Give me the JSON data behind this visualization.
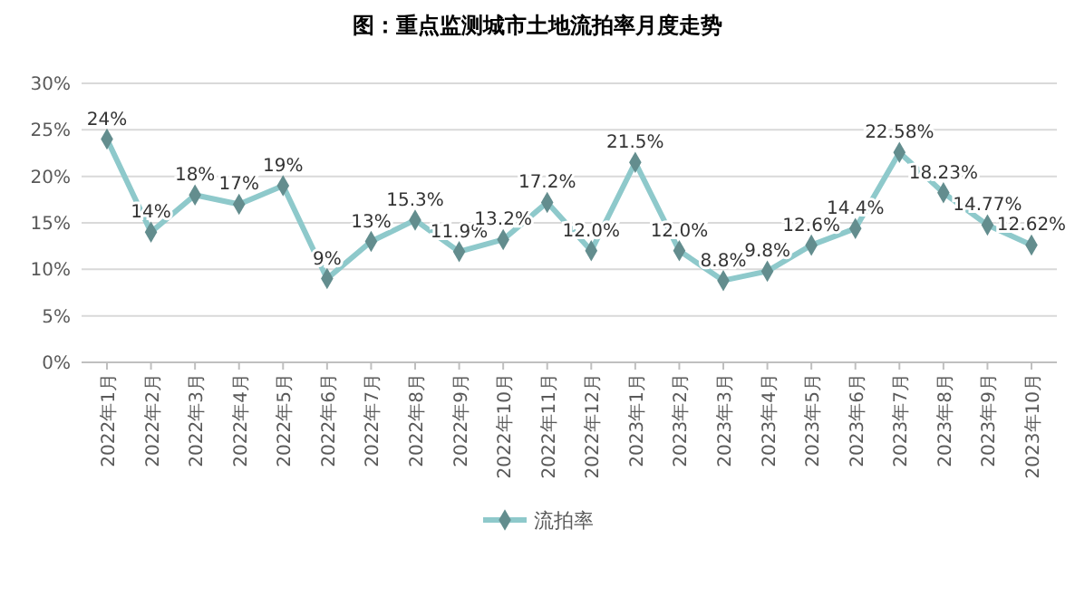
{
  "chart_data": {
    "type": "line",
    "title": "图：重点监测城市土地流拍率月度走势",
    "categories": [
      "2022年1月",
      "2022年2月",
      "2022年3月",
      "2022年4月",
      "2022年5月",
      "2022年6月",
      "2022年7月",
      "2022年8月",
      "2022年9月",
      "2022年10月",
      "2022年11月",
      "2022年12月",
      "2023年1月",
      "2023年2月",
      "2023年3月",
      "2023年4月",
      "2023年5月",
      "2023年6月",
      "2023年7月",
      "2023年8月",
      "2023年9月",
      "2023年10月"
    ],
    "series": [
      {
        "name": "流拍率",
        "color": "#8ec9cb",
        "values": [
          24,
          14,
          18,
          17,
          19,
          9,
          13,
          15.3,
          11.9,
          13.2,
          17.2,
          12.0,
          21.5,
          12.0,
          8.8,
          9.8,
          12.6,
          14.4,
          22.58,
          18.23,
          14.77,
          12.62
        ],
        "value_labels": [
          "24%",
          "14%",
          "18%",
          "17%",
          "19%",
          "9%",
          "13%",
          "15.3%",
          "11.9%",
          "13.2%",
          "17.2%",
          "12.0%",
          "21.5%",
          "12.0%",
          "8.8%",
          "9.8%",
          "12.6%",
          "14.4%",
          "22.58%",
          "18.23%",
          "14.77%",
          "12.62%"
        ]
      }
    ],
    "ylim": [
      0,
      30
    ],
    "yticks": [
      {
        "value": 0,
        "label": "0%"
      },
      {
        "value": 5,
        "label": "5%"
      },
      {
        "value": 10,
        "label": "10%"
      },
      {
        "value": 15,
        "label": "15%"
      },
      {
        "value": 20,
        "label": "20%"
      },
      {
        "value": 25,
        "label": "25%"
      },
      {
        "value": 30,
        "label": "30%"
      }
    ],
    "grid": "y",
    "legend": "bottom",
    "marker": "diamond",
    "line_style": "solid"
  }
}
